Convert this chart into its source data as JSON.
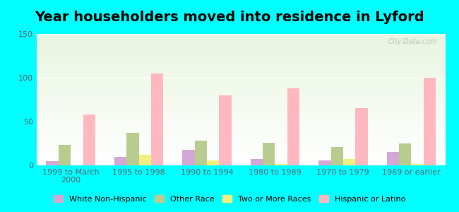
{
  "title": "Year householders moved into residence in Lyford",
  "categories": [
    "1999 to March\n2000",
    "1995 to 1998",
    "1990 to 1994",
    "1980 to 1989",
    "1970 to 1979",
    "1969 or earlier"
  ],
  "series": {
    "White Non-Hispanic": [
      5,
      10,
      18,
      7,
      6,
      15
    ],
    "Other Race": [
      23,
      37,
      28,
      26,
      21,
      25
    ],
    "Two or More Races": [
      0,
      12,
      6,
      2,
      7,
      2
    ],
    "Hispanic or Latino": [
      58,
      105,
      80,
      88,
      65,
      100
    ]
  },
  "colors": {
    "White Non-Hispanic": "#d4a8d4",
    "Other Race": "#b8cc90",
    "Two or More Races": "#f0f080",
    "Hispanic or Latino": "#ffb8c0"
  },
  "ylim": [
    0,
    150
  ],
  "yticks": [
    0,
    50,
    100,
    150
  ],
  "background_color": "#00ffff",
  "watermark": "City-Data.com",
  "bar_width": 0.18,
  "title_fontsize": 14,
  "tick_fontsize": 8,
  "legend_fontsize": 8
}
